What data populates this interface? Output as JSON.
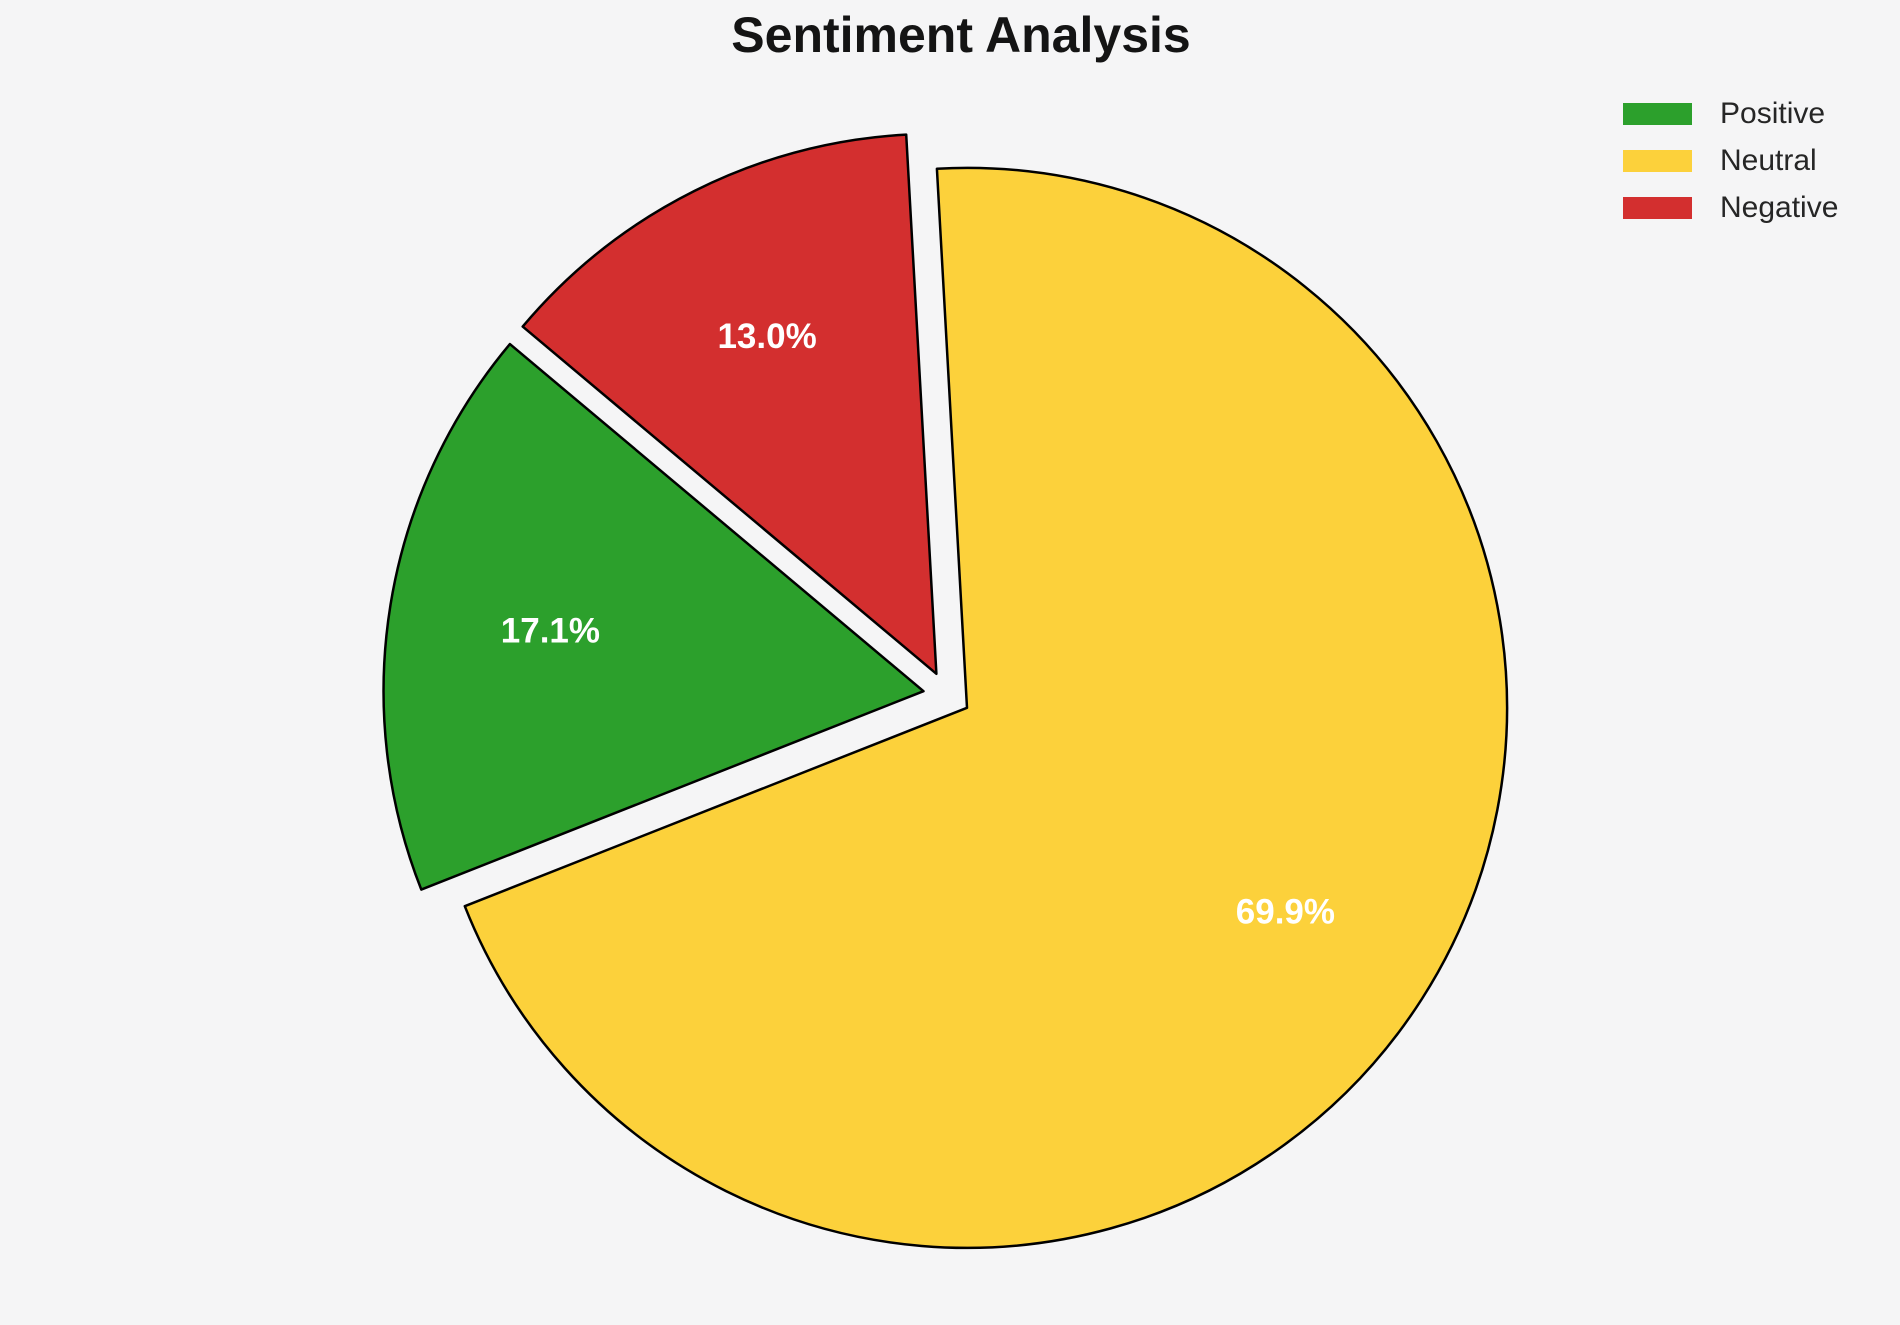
{
  "title": "Sentiment Analysis",
  "legend": {
    "items": [
      {
        "label": "Positive",
        "color": "#2CA02C"
      },
      {
        "label": "Neutral",
        "color": "#FCD13B"
      },
      {
        "label": "Negative",
        "color": "#D32F2F"
      }
    ]
  },
  "chart_data": {
    "type": "pie",
    "title": "Sentiment Analysis",
    "categories": [
      "Positive",
      "Neutral",
      "Negative"
    ],
    "values": [
      17.1,
      69.9,
      13.0
    ],
    "pct_labels": [
      "17.1%",
      "69.9%",
      "13.0%"
    ],
    "colors": [
      "#2CA02C",
      "#FCD13B",
      "#D32F2F"
    ],
    "edge_color": "#000000",
    "pct_label_color": "#FFFFFF",
    "startangle": 140,
    "counterclock": true,
    "explode": [
      0.044,
      0.044,
      0.044
    ],
    "pctdistance": 0.7,
    "legend_position": "upper right",
    "legend_frame": false,
    "background_color": "#F5F5F6"
  }
}
